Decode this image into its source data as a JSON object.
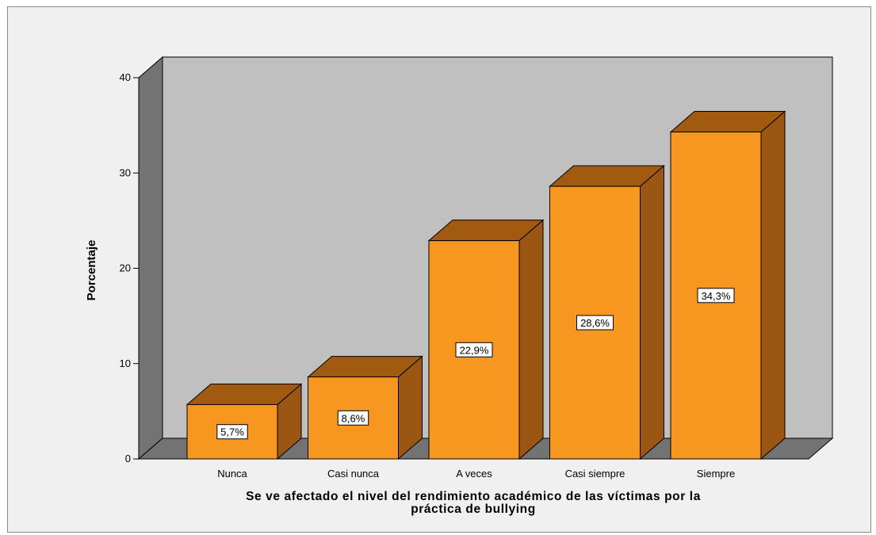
{
  "chart_data": {
    "type": "bar",
    "style": "3d",
    "categories": [
      "Nunca",
      "Casi nunca",
      "A veces",
      "Casi siempre",
      "Siempre"
    ],
    "values": [
      5.7,
      8.6,
      22.9,
      28.6,
      34.3
    ],
    "data_labels": [
      "5,7%",
      "8,6%",
      "22,9%",
      "28,6%",
      "34,3%"
    ],
    "ylabel": "Porcentaje",
    "xlabel_lines": [
      "Se ve afectado el nivel del rendimiento académico de las víctimas por la",
      "práctica de bullying"
    ],
    "ylim": [
      0,
      40
    ],
    "yticks": [
      "0",
      "10",
      "20",
      "30",
      "40"
    ],
    "grid": false,
    "legend": "none",
    "colors": {
      "bar_front": "#f7971f",
      "bar_top": "#a15a10",
      "bar_side": "#9a5612",
      "back_wall": "#c0c0c0",
      "left_wall": "#737373",
      "floor": "#737373",
      "frame_bg": "#f0f0f0"
    }
  }
}
